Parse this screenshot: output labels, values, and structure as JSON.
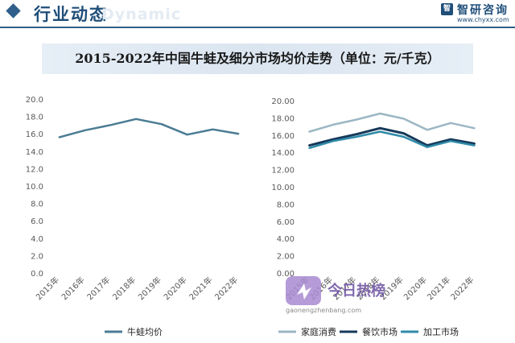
{
  "header": {
    "title": "行业动态",
    "ghost_text": "Dynamic",
    "logo_mark": "智",
    "logo_name": "智研咨询",
    "logo_url": "www.chyxx.com",
    "rule_color": "#2f5f8a"
  },
  "chart_title": "2015-2022年中国牛蛙及细分市场均价走势（单位：元/千克）",
  "chart_data": [
    {
      "type": "line",
      "categories": [
        "2015年",
        "2016年",
        "2017年",
        "2018年",
        "2019年",
        "2020年",
        "2021年",
        "2022年"
      ],
      "ylim": [
        0,
        20
      ],
      "yticks": [
        "0.0",
        "2.0",
        "4.0",
        "6.0",
        "8.0",
        "10.0",
        "12.0",
        "14.0",
        "16.0",
        "18.0",
        "20.0"
      ],
      "grid": false,
      "legend": "bottom",
      "series": [
        {
          "name": "牛蛙均价",
          "values": [
            15.7,
            16.5,
            17.1,
            17.8,
            17.2,
            16.0,
            16.6,
            16.1
          ],
          "color": "#4a7c93"
        }
      ]
    },
    {
      "type": "line",
      "categories": [
        "2015年",
        "2016年",
        "2017年",
        "2018年",
        "2019年",
        "2020年",
        "2021年",
        "2022年"
      ],
      "ylim": [
        0,
        20
      ],
      "yticks": [
        "0.00",
        "2.00",
        "4.00",
        "6.00",
        "8.00",
        "10.00",
        "12.00",
        "14.00",
        "16.00",
        "18.00",
        "20.00"
      ],
      "grid": false,
      "legend": "bottom",
      "series": [
        {
          "name": "家庭消费",
          "values": [
            16.5,
            17.3,
            17.9,
            18.6,
            18.0,
            16.7,
            17.5,
            16.9
          ],
          "color": "#9bb7c4"
        },
        {
          "name": "餐饮市场",
          "values": [
            14.9,
            15.6,
            16.2,
            16.9,
            16.3,
            14.9,
            15.6,
            15.1
          ],
          "color": "#16395a"
        },
        {
          "name": "加工市场",
          "values": [
            14.6,
            15.4,
            15.9,
            16.5,
            15.9,
            14.7,
            15.4,
            14.9
          ],
          "color": "#2e8aa8"
        }
      ]
    }
  ],
  "overlay": {
    "badge_text": "今日热榜",
    "url_text": "gaonengzhenbang.com"
  }
}
